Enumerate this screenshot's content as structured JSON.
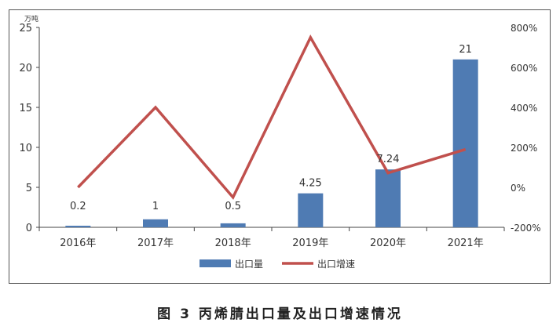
{
  "chart_data": {
    "type": "bar",
    "categories": [
      "2016年",
      "2017年",
      "2018年",
      "2019年",
      "2020年",
      "2021年"
    ],
    "series": [
      {
        "name": "出口量",
        "type": "bar",
        "axis": "left",
        "color": "#4F7BB3",
        "values": [
          0.2,
          1,
          0.5,
          4.25,
          7.24,
          21
        ],
        "data_labels": [
          "0.2",
          "1",
          "0.5",
          "4.25",
          "7.24",
          "21"
        ]
      },
      {
        "name": "出口增速",
        "type": "line",
        "axis": "right",
        "color": "#C0504D",
        "values": [
          0,
          400,
          -50,
          750,
          72,
          190
        ]
      }
    ],
    "y_left": {
      "unit_label": "万吨",
      "ylim": [
        0,
        25
      ],
      "ticks": [
        0,
        5,
        10,
        15,
        20,
        25
      ],
      "tick_labels": [
        "0",
        "5",
        "10",
        "15",
        "20",
        "25"
      ]
    },
    "y_right": {
      "ylim": [
        -200,
        800
      ],
      "ticks": [
        -200,
        0,
        200,
        400,
        600,
        800
      ],
      "tick_labels": [
        "-200%",
        "0%",
        "200%",
        "400%",
        "600%",
        "800%"
      ]
    },
    "legend_position": "bottom",
    "grid": false
  },
  "caption": "图 3  丙烯腈出口量及出口增速情况"
}
